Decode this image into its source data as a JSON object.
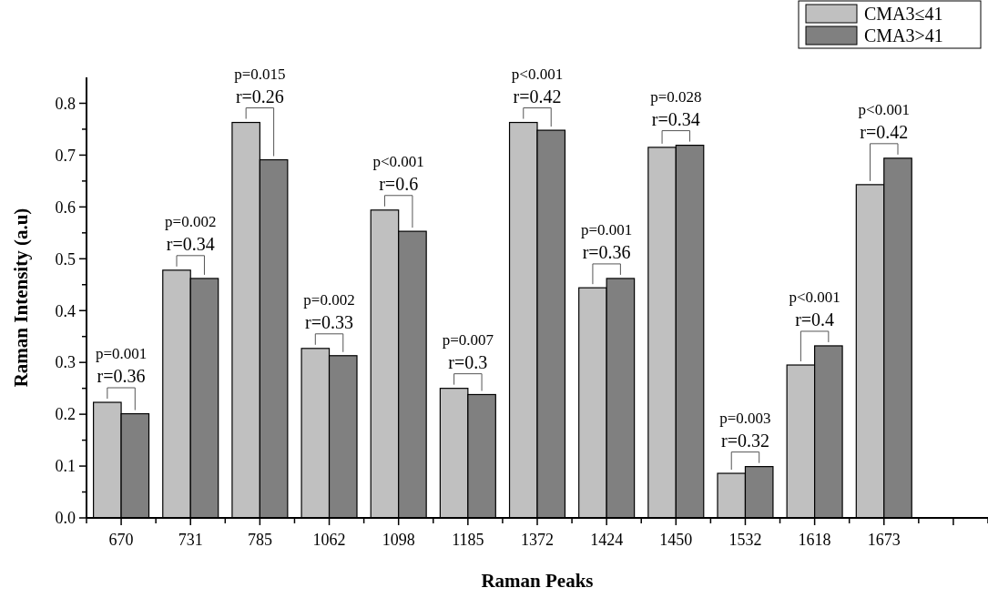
{
  "chart_data": {
    "type": "bar",
    "xlabel": "Raman Peaks",
    "ylabel": "Raman Intensity (a.u)",
    "categories": [
      "670",
      "731",
      "785",
      "1062",
      "1098",
      "1185",
      "1372",
      "1424",
      "1450",
      "1532",
      "1618",
      "1673",
      null
    ],
    "series": [
      {
        "name": "CMA3≤41",
        "color": "#c0c0c0",
        "values": [
          0.223,
          0.478,
          0.763,
          0.327,
          0.594,
          0.25,
          0.763,
          0.444,
          0.715,
          0.086,
          0.295,
          0.643,
          null
        ]
      },
      {
        "name": "CMA3>41",
        "color": "#808080",
        "values": [
          0.201,
          0.462,
          0.691,
          0.313,
          0.553,
          0.238,
          0.748,
          0.462,
          0.719,
          0.099,
          0.332,
          0.694,
          null
        ]
      }
    ],
    "ylim": [
      0,
      0.85
    ],
    "yticks": [
      {
        "value": 0,
        "label": "0.0"
      },
      {
        "value": 0.05,
        "label": null
      },
      0.1,
      {
        "value": 0.15,
        "label": null
      },
      0.2,
      {
        "value": 0.25,
        "label": null
      },
      0.3,
      {
        "value": 0.35,
        "label": null
      },
      0.4,
      {
        "value": 0.45,
        "label": null
      },
      0.5,
      {
        "value": 0.55,
        "label": null
      },
      0.6,
      {
        "value": 0.65,
        "label": null
      },
      0.7,
      {
        "value": 0.75,
        "label": null
      },
      0.8
    ],
    "grid": false,
    "legend": "top right",
    "annotations": [
      {
        "text": "p=0.001",
        "x": "670",
        "y": 0.223
      },
      {
        "text": "r=0.36",
        "x": "670",
        "y": 0.223
      },
      {
        "text": "p=0.002",
        "x": "731",
        "y": 0.478
      },
      {
        "text": "r=0.34",
        "x": "731",
        "y": 0.478
      },
      {
        "text": "p=0.015",
        "x": "785",
        "y": 0.763
      },
      {
        "text": "r=0.26",
        "x": "785",
        "y": 0.763
      },
      {
        "text": "p=0.002",
        "x": "1062",
        "y": 0.327
      },
      {
        "text": "r=0.33",
        "x": "1062",
        "y": 0.327
      },
      {
        "text": "p<0.001",
        "x": "1098",
        "y": 0.594
      },
      {
        "text": "r=0.6",
        "x": "1098",
        "y": 0.594
      },
      {
        "text": "p=0.007",
        "x": "1185",
        "y": 0.25
      },
      {
        "text": "r=0.3",
        "x": "1185",
        "y": 0.25
      },
      {
        "text": "p<0.001",
        "x": "1372",
        "y": 0.763
      },
      {
        "text": "r=0.42",
        "x": "1372",
        "y": 0.763
      },
      {
        "text": "p=0.001",
        "x": "1424",
        "y": 0.462
      },
      {
        "text": "r=0.36",
        "x": "1424",
        "y": 0.462
      },
      {
        "text": "p=0.028",
        "x": "1450",
        "y": 0.719
      },
      {
        "text": "r=0.34",
        "x": "1450",
        "y": 0.719
      },
      {
        "text": "p=0.003",
        "x": "1532",
        "y": 0.099
      },
      {
        "text": "r=0.32",
        "x": "1532",
        "y": 0.099
      },
      {
        "text": "p<0.001",
        "x": "1618",
        "y": 0.332
      },
      {
        "text": "r=0.4",
        "x": "1618",
        "y": 0.332
      },
      {
        "text": "p<0.001",
        "x": "1673",
        "y": 0.694
      },
      {
        "text": "r=0.42",
        "x": "1673",
        "y": 0.694
      }
    ]
  }
}
